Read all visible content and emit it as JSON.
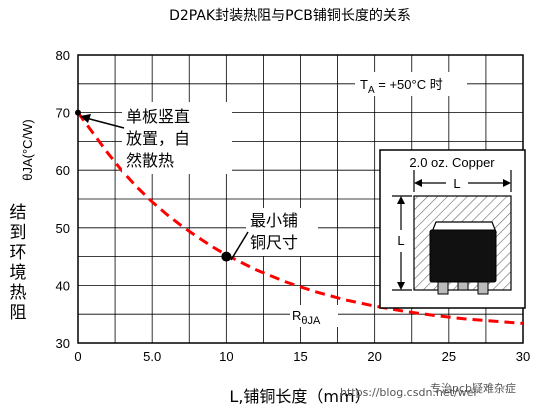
{
  "chart_data": {
    "type": "line",
    "title": "D2PAK封装热阻与PCB铺铜长度的关系",
    "xlabel": "L,铺铜长度（mm）",
    "ylabel_symbol": "θJA(°C/W)",
    "ylabel_cn": "结到环境热阻",
    "xlim": [
      0,
      30
    ],
    "ylim": [
      30,
      80
    ],
    "x_ticks": [
      0,
      5,
      10,
      15,
      20,
      25,
      30
    ],
    "x_tick_labels": [
      "0",
      "5.0",
      "10",
      "15",
      "20",
      "25",
      "30"
    ],
    "y_ticks": [
      30,
      40,
      50,
      60,
      70,
      80
    ],
    "y_tick_labels": [
      "30",
      "40",
      "50",
      "60",
      "70",
      "80"
    ],
    "grid": true,
    "series": [
      {
        "name": "RθJA",
        "color": "#ff0000",
        "style": "dashed",
        "x": [
          0,
          1,
          2,
          3,
          4,
          5,
          6,
          7,
          8,
          9,
          10,
          12,
          14,
          16,
          18,
          20,
          22,
          24,
          26,
          28,
          30
        ],
        "y": [
          70,
          66.5,
          63,
          59.8,
          57,
          54.5,
          52.3,
          50.3,
          48.5,
          46.8,
          45.3,
          42.7,
          40.6,
          38.9,
          37.5,
          36.4,
          35.5,
          34.8,
          34.2,
          33.8,
          33.4
        ]
      }
    ],
    "markers": [
      {
        "x": 0,
        "y": 70,
        "label": "单板竖直放置，自然散热"
      },
      {
        "x": 10,
        "y": 45,
        "label": "最小铺铜尺寸"
      }
    ]
  },
  "annotations": {
    "condition_ta": "T",
    "condition_ta_sub": "A",
    "condition_rest": " = +50°C 时",
    "vertical_line1": "单板竖直",
    "vertical_line2": "放置，自",
    "vertical_line3": "然散热",
    "min_line1": "最小铺",
    "min_line2": "铜尺寸",
    "series_label_main": "R",
    "series_label_sub": "θJA",
    "ylabel_cn_chars": [
      "结",
      "到",
      "环",
      "境",
      "热",
      "阻"
    ]
  },
  "inset": {
    "title": "2.0 oz. Copper",
    "dim_h": "L",
    "dim_v": "L"
  },
  "watermark": "专治pcb疑难杂症",
  "watermark_url": "https://blog.csdn.net/wei"
}
